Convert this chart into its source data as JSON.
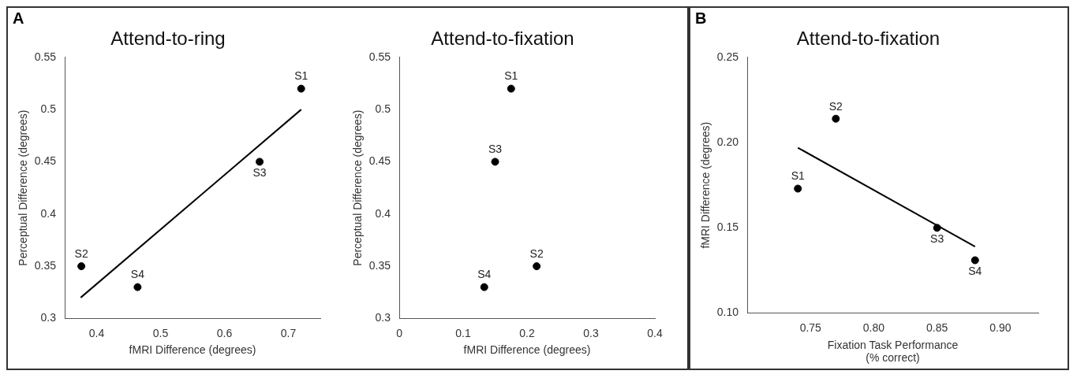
{
  "chart_data": [
    {
      "type": "scatter",
      "title": "Attend-to-ring",
      "xlabel": "fMRI Difference (degrees)",
      "ylabel": "Perceptual Difference (degrees)",
      "annotations": [
        "A"
      ],
      "xlim": [
        0.35,
        0.75
      ],
      "xticks": [
        0.4,
        0.5,
        0.6,
        0.7
      ],
      "ylim": [
        0.3,
        0.55
      ],
      "yticks": [
        0.3,
        0.35,
        0.4,
        0.45,
        0.5,
        0.55
      ],
      "grid": false,
      "legend": false,
      "marker": "circle",
      "series": [
        {
          "type": "scatter",
          "color": "#000000",
          "x": [
            0.72,
            0.655,
            0.376,
            0.464
          ],
          "values": [
            0.52,
            0.45,
            0.35,
            0.33
          ],
          "value_labels": [
            "S1",
            "S3",
            "S2",
            "S4"
          ]
        },
        {
          "type": "line",
          "color": "#000000",
          "marker": "none",
          "x": [
            0.375,
            0.72
          ],
          "values": [
            0.32,
            0.5
          ]
        }
      ]
    },
    {
      "type": "scatter",
      "title": "Attend-to-fixation",
      "xlabel": "fMRI Difference (degrees)",
      "ylabel": "Perceptual Difference (degrees)",
      "xlim": [
        0,
        0.4
      ],
      "xticks": [
        0,
        0.1,
        0.2,
        0.3,
        0.4
      ],
      "ylim": [
        0.3,
        0.55
      ],
      "yticks": [
        0.3,
        0.35,
        0.4,
        0.45,
        0.5,
        0.55
      ],
      "grid": false,
      "legend": false,
      "marker": "circle",
      "series": [
        {
          "type": "scatter",
          "color": "#000000",
          "x": [
            0.175,
            0.15,
            0.215,
            0.133
          ],
          "values": [
            0.52,
            0.45,
            0.35,
            0.33
          ],
          "value_labels": [
            "S1",
            "S3",
            "S2",
            "S4"
          ]
        }
      ]
    },
    {
      "type": "scatter",
      "title": "Attend-to-fixation",
      "xlabel": "Fixation Task Performance\n(% correct)",
      "ylabel": "fMRI Difference (degrees)",
      "annotations": [
        "B"
      ],
      "xlim": [
        0.7,
        0.93
      ],
      "xticks": [
        0.75,
        {
          "value": 0.8,
          "label": "0.80"
        },
        0.85,
        {
          "value": 0.9,
          "label": "0.90"
        }
      ],
      "ylim": [
        0.1,
        0.25
      ],
      "yticks": [
        {
          "value": 0.1,
          "label": "0.10"
        },
        0.15,
        {
          "value": 0.2,
          "label": "0.20"
        },
        0.25
      ],
      "grid": false,
      "legend": false,
      "marker": "circle",
      "series": [
        {
          "type": "scatter",
          "color": "#000000",
          "x": [
            0.74,
            0.77,
            0.85,
            0.88
          ],
          "values": [
            0.173,
            0.214,
            0.15,
            0.131
          ],
          "value_labels": [
            "S1",
            "S2",
            "S3",
            "S4"
          ]
        },
        {
          "type": "line",
          "color": "#000000",
          "marker": "none",
          "x": [
            0.74,
            0.88
          ],
          "values": [
            0.197,
            0.139
          ]
        }
      ]
    }
  ]
}
